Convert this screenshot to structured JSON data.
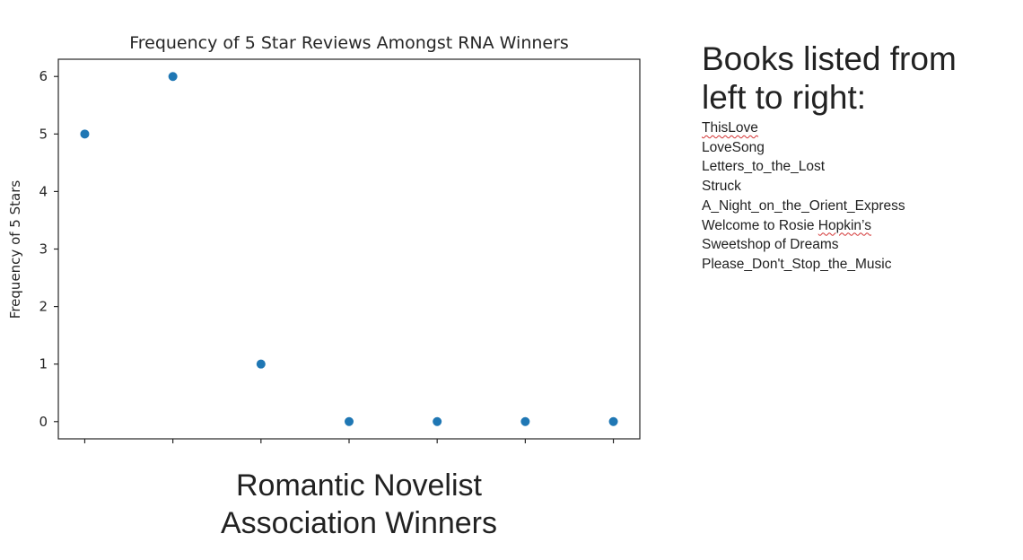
{
  "chart_data": {
    "type": "scatter",
    "title": "Frequency of 5 Star Reviews Amongst RNA Winners",
    "xlabel": "Romantic Novelist Association Winners",
    "ylabel": "Frequency of 5 Stars",
    "x": [
      0,
      1,
      2,
      3,
      4,
      5,
      6
    ],
    "values": [
      5,
      6,
      1,
      0,
      0,
      0,
      0
    ],
    "y_ticks": [
      "0",
      "1",
      "2",
      "3",
      "4",
      "5",
      "6"
    ],
    "x_tick_labels": [
      "",
      "",
      "",
      "",
      "",
      "",
      ""
    ],
    "ylim": [
      -0.3,
      6.3
    ],
    "xlim": [
      -0.3,
      6.3
    ],
    "grid": false,
    "point_color": "#1f77b4"
  },
  "side_panel": {
    "heading": "Books listed from left to right:",
    "heading_lines": [
      "Books listed from",
      "left to right:"
    ],
    "books": [
      "ThisLove",
      "LoveSong",
      "Letters_to_the_Lost",
      "Struck",
      "A_Night_on_the_Orient_Express",
      "Welcome to Rosie Hopkin’s",
      "Sweetshop of Dreams",
      "Please_Don't_Stop_the_Music"
    ]
  },
  "xlabel_lines": [
    "Romantic Novelist",
    "Association Winners"
  ]
}
